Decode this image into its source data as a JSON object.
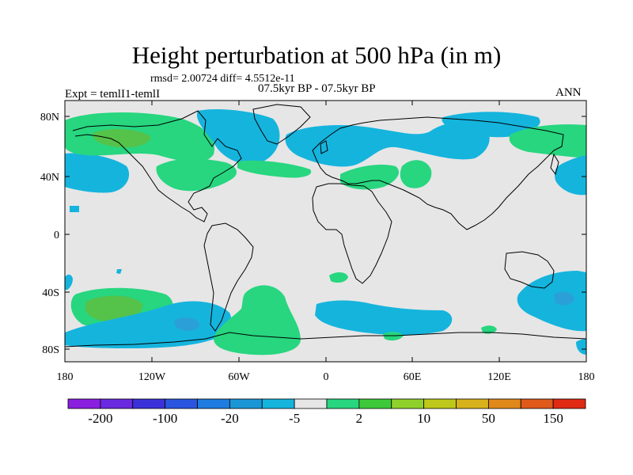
{
  "title": "Height perturbation at 500 hPa (in m)",
  "subtitle_stats": "rmsd= 2.00724 diff= 4.5512e-11",
  "subtitle_period": "07.5kyr BP - 07.5kyr BP",
  "expt_label": "Expt = temlI1-temlI",
  "season_label": "ANN",
  "colors": {
    "background_land_ocean": "#e6e6e6",
    "light_blue": "#15b4dd",
    "mid_blue": "#2a9fd8",
    "light_green": "#27d67f",
    "green": "#55c24a",
    "coast": "#000000"
  },
  "map": {
    "lat_labels": [
      "80N",
      "40N",
      "0",
      "40S",
      "80S"
    ],
    "lon_labels": [
      "180",
      "120W",
      "60W",
      "0",
      "60E",
      "120E",
      "180"
    ],
    "lat_values": [
      80,
      40,
      0,
      -40,
      -80
    ],
    "lon_values": [
      -180,
      -120,
      -60,
      0,
      60,
      120,
      180
    ]
  },
  "legend": {
    "colors": [
      "#8a1fe0",
      "#6a2ae0",
      "#3a32d8",
      "#2a55e0",
      "#1e7ce0",
      "#1a96d6",
      "#15b4dd",
      "#e6e6e6",
      "#27d67f",
      "#3ec93a",
      "#8fd12a",
      "#bdc81a",
      "#d8b21a",
      "#e0881a",
      "#e05a1a",
      "#e02a14"
    ],
    "labels": [
      "-200",
      "-100",
      "-20",
      "-5",
      "2",
      "10",
      "50",
      "150"
    ]
  }
}
